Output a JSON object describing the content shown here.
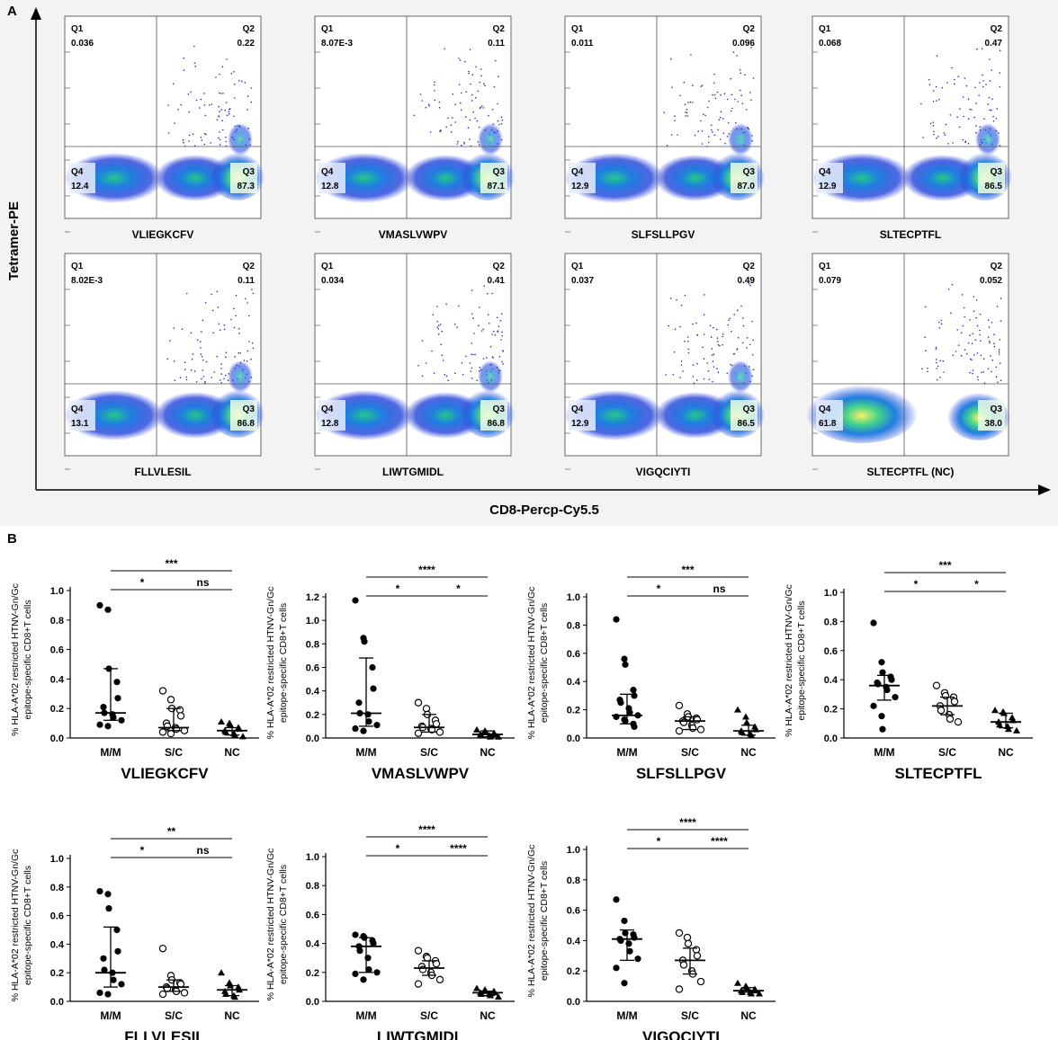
{
  "panel_a": {
    "letter": "A",
    "y_axis_label": "Tetramer-PE",
    "x_axis_label": "CD8-Percp-Cy5.5",
    "flow_plots": [
      {
        "title": "VLIEGKCFV",
        "q1": "0.036",
        "q2": "0.22",
        "q3": "87.3",
        "q4": "12.4"
      },
      {
        "title": "VMASLVWPV",
        "q1": "8.07E-3",
        "q2": "0.11",
        "q3": "87.1",
        "q4": "12.8"
      },
      {
        "title": "SLFSLLPGV",
        "q1": "0.011",
        "q2": "0.096",
        "q3": "87.0",
        "q4": "12.9"
      },
      {
        "title": "SLTECPTFL",
        "q1": "0.068",
        "q2": "0.47",
        "q3": "86.5",
        "q4": "12.9"
      },
      {
        "title": "FLLVLESIL",
        "q1": "8.02E-3",
        "q2": "0.11",
        "q3": "86.8",
        "q4": "13.1"
      },
      {
        "title": "LIWTGMIDL",
        "q1": "0.034",
        "q2": "0.41",
        "q3": "86.8",
        "q4": "12.8"
      },
      {
        "title": "VIGQCIYTI",
        "q1": "0.037",
        "q2": "0.49",
        "q3": "86.5",
        "q4": "12.9"
      },
      {
        "title": "SLTECPTFL (NC)",
        "q1": "0.079",
        "q2": "0.052",
        "q3": "38.0",
        "q4": "61.8"
      }
    ]
  },
  "panel_b": {
    "letter": "B",
    "y_axis_label_line1": "% HLA-A*02 restricted HTNV-Gn/Gc",
    "y_axis_label_line2": "epitope-specific CD8+T cells"
  },
  "chart_data": [
    {
      "type": "scatter",
      "title": "VLIEGKCFV",
      "categories": [
        "M/M",
        "S/C",
        "NC"
      ],
      "ylim": [
        0,
        1.0
      ],
      "yticks": [
        "0.0",
        "0.2",
        "0.4",
        "0.6",
        "0.8",
        "1.0"
      ],
      "series": [
        {
          "name": "M/M",
          "marker": "filled-circle",
          "median": 0.17,
          "q1": 0.12,
          "q3": 0.47,
          "values": [
            0.9,
            0.87,
            0.47,
            0.38,
            0.27,
            0.21,
            0.17,
            0.16,
            0.14,
            0.12,
            0.09,
            0.08
          ]
        },
        {
          "name": "S/C",
          "marker": "open-circle",
          "median": 0.07,
          "q1": 0.05,
          "q3": 0.2,
          "values": [
            0.32,
            0.26,
            0.2,
            0.19,
            0.15,
            0.1,
            0.08,
            0.07,
            0.06,
            0.05,
            0.04,
            0.03
          ]
        },
        {
          "name": "NC",
          "marker": "filled-triangle",
          "median": 0.05,
          "q1": 0.02,
          "q3": 0.07,
          "values": [
            0.11,
            0.1,
            0.09,
            0.07,
            0.06,
            0.05,
            0.04,
            0.03,
            0.02,
            0.01
          ]
        }
      ],
      "significance": [
        {
          "label": "***",
          "from": "M/M",
          "to": "NC"
        },
        {
          "label": "*",
          "from": "M/M",
          "to": "S/C"
        },
        {
          "label": "ns",
          "from": "S/C",
          "to": "NC"
        }
      ]
    },
    {
      "type": "scatter",
      "title": "VMASLVWPV",
      "categories": [
        "M/M",
        "S/C",
        "NC"
      ],
      "ylim": [
        0,
        1.2
      ],
      "yticks": [
        "0.0",
        "0.2",
        "0.4",
        "0.6",
        "0.8",
        "1.0",
        "1.2"
      ],
      "series": [
        {
          "name": "M/M",
          "marker": "filled-circle",
          "median": 0.21,
          "q1": 0.1,
          "q3": 0.68,
          "values": [
            1.17,
            0.85,
            0.82,
            0.6,
            0.42,
            0.3,
            0.21,
            0.2,
            0.14,
            0.11,
            0.08,
            0.06
          ]
        },
        {
          "name": "S/C",
          "marker": "open-circle",
          "median": 0.09,
          "q1": 0.05,
          "q3": 0.2,
          "values": [
            0.3,
            0.25,
            0.2,
            0.15,
            0.12,
            0.1,
            0.09,
            0.08,
            0.07,
            0.05,
            0.04
          ]
        },
        {
          "name": "NC",
          "marker": "filled-triangle",
          "median": 0.03,
          "q1": 0.01,
          "q3": 0.06,
          "values": [
            0.07,
            0.06,
            0.05,
            0.04,
            0.03,
            0.03,
            0.02,
            0.02,
            0.01,
            0.01
          ]
        }
      ],
      "significance": [
        {
          "label": "****",
          "from": "M/M",
          "to": "NC"
        },
        {
          "label": "*",
          "from": "M/M",
          "to": "S/C"
        },
        {
          "label": "*",
          "from": "S/C",
          "to": "NC"
        }
      ]
    },
    {
      "type": "scatter",
      "title": "SLFSLLPGV",
      "categories": [
        "M/M",
        "S/C",
        "NC"
      ],
      "ylim": [
        0,
        1.0
      ],
      "yticks": [
        "0.0",
        "0.2",
        "0.4",
        "0.6",
        "0.8",
        "1.0"
      ],
      "series": [
        {
          "name": "M/M",
          "marker": "filled-circle",
          "median": 0.16,
          "q1": 0.1,
          "q3": 0.31,
          "values": [
            0.84,
            0.56,
            0.52,
            0.34,
            0.3,
            0.27,
            0.25,
            0.21,
            0.18,
            0.16,
            0.15,
            0.13,
            0.12,
            0.1,
            0.08
          ]
        },
        {
          "name": "S/C",
          "marker": "open-circle",
          "median": 0.12,
          "q1": 0.06,
          "q3": 0.15,
          "values": [
            0.23,
            0.17,
            0.15,
            0.14,
            0.13,
            0.12,
            0.11,
            0.09,
            0.07,
            0.06,
            0.05
          ]
        },
        {
          "name": "NC",
          "marker": "filled-triangle",
          "median": 0.05,
          "q1": 0.02,
          "q3": 0.09,
          "values": [
            0.2,
            0.15,
            0.11,
            0.08,
            0.06,
            0.05,
            0.04,
            0.03,
            0.02
          ]
        }
      ],
      "significance": [
        {
          "label": "***",
          "from": "M/M",
          "to": "NC"
        },
        {
          "label": "*",
          "from": "M/M",
          "to": "S/C"
        },
        {
          "label": "ns",
          "from": "S/C",
          "to": "NC"
        }
      ]
    },
    {
      "type": "scatter",
      "title": "SLTECPTFL",
      "categories": [
        "M/M",
        "S/C",
        "NC"
      ],
      "ylim": [
        0,
        1.0
      ],
      "yticks": [
        "0.0",
        "0.2",
        "0.4",
        "0.6",
        "0.8",
        "1.0"
      ],
      "series": [
        {
          "name": "M/M",
          "marker": "filled-circle",
          "median": 0.36,
          "q1": 0.26,
          "q3": 0.43,
          "values": [
            0.79,
            0.52,
            0.45,
            0.42,
            0.4,
            0.38,
            0.37,
            0.35,
            0.33,
            0.28,
            0.22,
            0.15,
            0.06
          ]
        },
        {
          "name": "S/C",
          "marker": "open-circle",
          "median": 0.22,
          "q1": 0.16,
          "q3": 0.28,
          "values": [
            0.36,
            0.31,
            0.29,
            0.28,
            0.25,
            0.22,
            0.19,
            0.16,
            0.13,
            0.11
          ]
        },
        {
          "name": "NC",
          "marker": "filled-triangle",
          "median": 0.11,
          "q1": 0.07,
          "q3": 0.17,
          "values": [
            0.19,
            0.18,
            0.17,
            0.14,
            0.12,
            0.11,
            0.09,
            0.08,
            0.06,
            0.05
          ]
        }
      ],
      "significance": [
        {
          "label": "***",
          "from": "M/M",
          "to": "NC"
        },
        {
          "label": "*",
          "from": "M/M",
          "to": "S/C"
        },
        {
          "label": "*",
          "from": "S/C",
          "to": "NC"
        }
      ]
    },
    {
      "type": "scatter",
      "title": "FLLVLESIL",
      "categories": [
        "M/M",
        "S/C",
        "NC"
      ],
      "ylim": [
        0,
        1.0
      ],
      "yticks": [
        "0.0",
        "0.2",
        "0.4",
        "0.6",
        "0.8",
        "1.0"
      ],
      "series": [
        {
          "name": "M/M",
          "marker": "filled-circle",
          "median": 0.2,
          "q1": 0.1,
          "q3": 0.52,
          "values": [
            0.77,
            0.75,
            0.65,
            0.5,
            0.35,
            0.3,
            0.22,
            0.2,
            0.15,
            0.12,
            0.06,
            0.05
          ]
        },
        {
          "name": "S/C",
          "marker": "open-circle",
          "median": 0.1,
          "q1": 0.07,
          "q3": 0.15,
          "values": [
            0.37,
            0.18,
            0.15,
            0.13,
            0.12,
            0.1,
            0.09,
            0.08,
            0.07,
            0.06,
            0.05
          ]
        },
        {
          "name": "NC",
          "marker": "filled-triangle",
          "median": 0.08,
          "q1": 0.04,
          "q3": 0.11,
          "values": [
            0.2,
            0.13,
            0.11,
            0.1,
            0.08,
            0.07,
            0.05,
            0.04,
            0.03
          ]
        }
      ],
      "significance": [
        {
          "label": "**",
          "from": "M/M",
          "to": "NC"
        },
        {
          "label": "*",
          "from": "M/M",
          "to": "S/C"
        },
        {
          "label": "ns",
          "from": "S/C",
          "to": "NC"
        }
      ]
    },
    {
      "type": "scatter",
      "title": "LIWTGMIDL",
      "categories": [
        "M/M",
        "S/C",
        "NC"
      ],
      "ylim": [
        0,
        1.0
      ],
      "yticks": [
        "0.0",
        "0.2",
        "0.4",
        "0.6",
        "0.8",
        "1.0"
      ],
      "series": [
        {
          "name": "M/M",
          "marker": "filled-circle",
          "median": 0.38,
          "q1": 0.2,
          "q3": 0.44,
          "values": [
            0.46,
            0.45,
            0.44,
            0.42,
            0.4,
            0.38,
            0.35,
            0.3,
            0.22,
            0.2,
            0.19,
            0.15
          ]
        },
        {
          "name": "S/C",
          "marker": "open-circle",
          "median": 0.23,
          "q1": 0.18,
          "q3": 0.28,
          "values": [
            0.35,
            0.31,
            0.3,
            0.28,
            0.26,
            0.24,
            0.22,
            0.2,
            0.18,
            0.15,
            0.12
          ]
        },
        {
          "name": "NC",
          "marker": "filled-triangle",
          "median": 0.06,
          "q1": 0.04,
          "q3": 0.07,
          "values": [
            0.09,
            0.08,
            0.07,
            0.07,
            0.06,
            0.06,
            0.05,
            0.05,
            0.04,
            0.03
          ]
        }
      ],
      "significance": [
        {
          "label": "****",
          "from": "M/M",
          "to": "NC"
        },
        {
          "label": "*",
          "from": "M/M",
          "to": "S/C"
        },
        {
          "label": "****",
          "from": "S/C",
          "to": "NC"
        }
      ]
    },
    {
      "type": "scatter",
      "title": "VIGQCIYTI",
      "categories": [
        "M/M",
        "S/C",
        "NC"
      ],
      "ylim": [
        0,
        1.0
      ],
      "yticks": [
        "0.0",
        "0.2",
        "0.4",
        "0.6",
        "0.8",
        "1.0"
      ],
      "series": [
        {
          "name": "M/M",
          "marker": "filled-circle",
          "median": 0.41,
          "q1": 0.27,
          "q3": 0.47,
          "values": [
            0.67,
            0.53,
            0.45,
            0.44,
            0.42,
            0.41,
            0.4,
            0.38,
            0.33,
            0.28,
            0.22,
            0.12
          ]
        },
        {
          "name": "S/C",
          "marker": "open-circle",
          "median": 0.27,
          "q1": 0.18,
          "q3": 0.35,
          "values": [
            0.45,
            0.42,
            0.38,
            0.34,
            0.3,
            0.27,
            0.24,
            0.2,
            0.18,
            0.13,
            0.08
          ]
        },
        {
          "name": "NC",
          "marker": "filled-triangle",
          "median": 0.07,
          "q1": 0.06,
          "q3": 0.09,
          "values": [
            0.12,
            0.1,
            0.09,
            0.08,
            0.07,
            0.07,
            0.06,
            0.06,
            0.05,
            0.05
          ]
        }
      ],
      "significance": [
        {
          "label": "****",
          "from": "M/M",
          "to": "NC"
        },
        {
          "label": "*",
          "from": "M/M",
          "to": "S/C"
        },
        {
          "label": "****",
          "from": "S/C",
          "to": "NC"
        }
      ]
    }
  ]
}
